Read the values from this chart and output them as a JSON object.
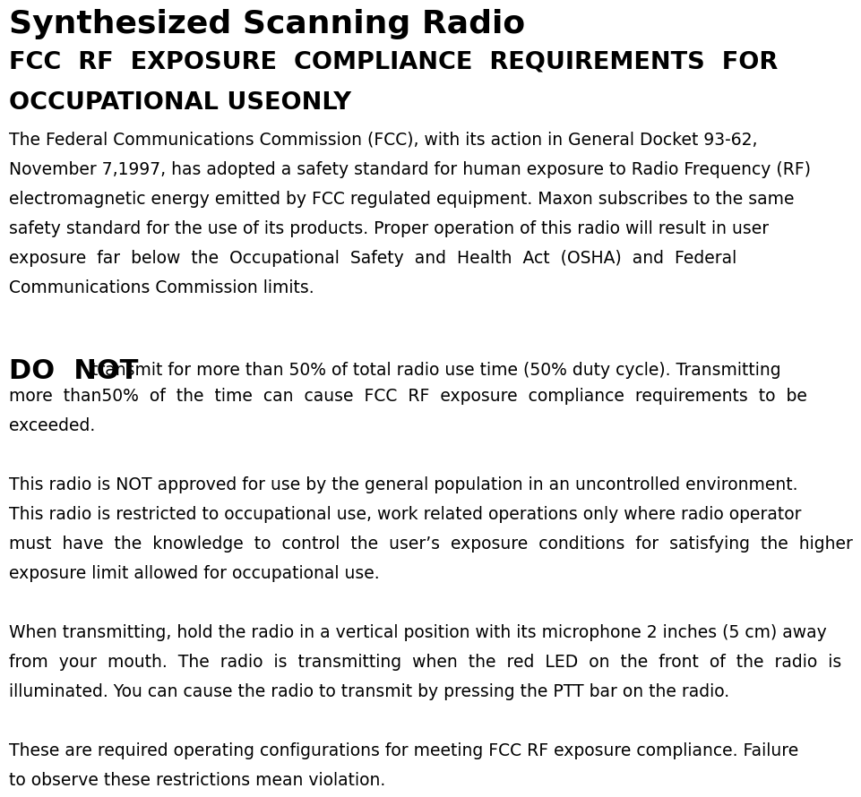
{
  "bg_color": "#ffffff",
  "text_color": "#000000",
  "title": "Synthesized Scanning Radio",
  "title_fontsize": 26,
  "subtitle_line1": "FCC  RF  EXPOSURE  COMPLIANCE  REQUIREMENTS  FOR",
  "subtitle_line2": "OCCUPATIONAL USEONLY",
  "subtitle_fontsize": 19.5,
  "body_fontsize": 13.5,
  "do_not_fontsize": 22,
  "lm": 0.025,
  "para1_lines": [
    "The Federal Communications Commission (FCC), with its action in General Docket 93-62,",
    "November 7,1997, has adopted a safety standard for human exposure to Radio Frequency (RF)",
    "electromagnetic energy emitted by FCC regulated equipment. Maxon subscribes to the same",
    "safety standard for the use of its products. Proper operation of this radio will result in user",
    "exposure  far  below  the  Occupational  Safety  and  Health  Act  (OSHA)  and  Federal",
    "Communications Commission limits."
  ],
  "para2_bold": "DO  NOT",
  "para2_line1_rest": " transmit for more than 50% of total radio use time (50% duty cycle). Transmitting",
  "para2_lines_rest": [
    "more  than50%  of  the  time  can  cause  FCC  RF  exposure  compliance  requirements  to  be",
    "exceeded."
  ],
  "para3_lines": [
    "This radio is NOT approved for use by the general population in an uncontrolled environment.",
    "This radio is restricted to occupational use, work related operations only where radio operator",
    "must  have  the  knowledge  to  control  the  user’s  exposure  conditions  for  satisfying  the  higher",
    "exposure limit allowed for occupational use."
  ],
  "para4_lines": [
    "When transmitting, hold the radio in a vertical position with its microphone 2 inches (5 cm) away",
    "from  your  mouth.  The  radio  is  transmitting  when  the  red  LED  on  the  front  of  the  radio  is",
    "illuminated. You can cause the radio to transmit by pressing the PTT bar on the radio."
  ],
  "para5_lines": [
    "These are required operating configurations for meeting FCC RF exposure compliance. Failure",
    "to observe these restrictions mean violation."
  ]
}
